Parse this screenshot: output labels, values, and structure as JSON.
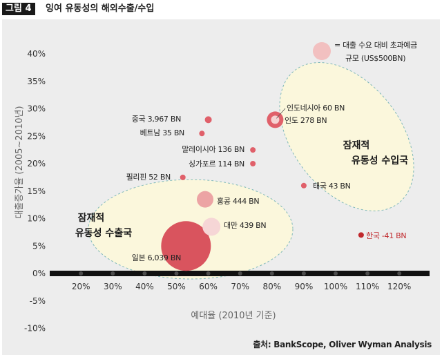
{
  "figure_label": "그림 4",
  "figure_title": "잉여 유동성의 해외수출/수입",
  "chart_data": {
    "type": "scatter",
    "xlabel": "예대율 (2010년 기준)",
    "ylabel": "대출증가율 (2005~2010년)",
    "x_ticks": [
      "20%",
      "30%",
      "40%",
      "50%",
      "60%",
      "70%",
      "80%",
      "90%",
      "100%",
      "110%",
      "120%"
    ],
    "y_ticks": [
      "40%",
      "35%",
      "30%",
      "25%",
      "20%",
      "15%",
      "10%",
      "5%",
      "0%",
      "-5%",
      "-10%"
    ],
    "xlim": [
      10,
      125
    ],
    "ylim": [
      -10,
      43
    ],
    "legend": {
      "text_line1": "= 대출 수요 대비 초과예금",
      "text_line2": "규모 (US$500BN)"
    },
    "source": "출처: BankScope, Oliver Wyman Analysis",
    "groups": [
      {
        "line1": "잠재적",
        "line2": "유동성 수입국"
      },
      {
        "line1": "잠재적",
        "line2": "유동성 수출국"
      }
    ],
    "points": [
      {
        "label": "중국 3,967 BN",
        "x": 60,
        "y": 28,
        "color": "#e0606a"
      },
      {
        "label": "베트남 35 BN",
        "x": 58,
        "y": 25.5,
        "color": "#e0606a"
      },
      {
        "label": "말레이시아 136 BN",
        "x": 74,
        "y": 22.5,
        "color": "#e0606a"
      },
      {
        "label": "싱가포르 114 BN",
        "x": 74,
        "y": 20,
        "color": "#e0606a"
      },
      {
        "label": "필리핀 52 BN",
        "x": 52,
        "y": 17.5,
        "color": "#e0606a"
      },
      {
        "label": "인도네시아 60 BN",
        "x": 81,
        "y": 28,
        "color": "#f6d2d2"
      },
      {
        "label": "인도 278 BN",
        "x": 81,
        "y": 28,
        "color": "#e0606a"
      },
      {
        "label": "태국 43 BN",
        "x": 90,
        "y": 16,
        "color": "#e0606a"
      },
      {
        "label": "홍콩 444 BN",
        "x": 59,
        "y": 13.5,
        "color": "#eca4a4"
      },
      {
        "label": "대만 439 BN",
        "x": 61,
        "y": 8.5,
        "color": "#f6d6d6"
      },
      {
        "label": "일본 6,039 BN",
        "x": 53,
        "y": 5,
        "color": "#d9545e"
      },
      {
        "label": "한국 -41 BN",
        "x": 108,
        "y": 7,
        "color": "#c0282c"
      }
    ]
  }
}
